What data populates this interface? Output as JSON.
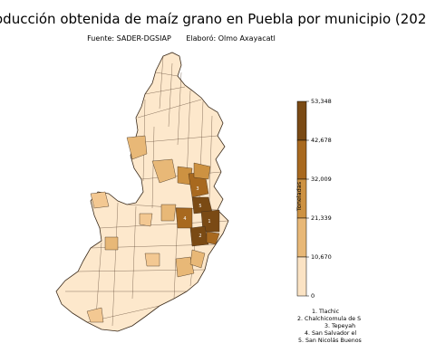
{
  "title": "oducción obtenida de maíz grano en Puebla por municipio (202",
  "subtitle": {
    "source": "Fuente: SADER-DGSIAP",
    "author": "Elaboró: Olmo Axayacatl"
  },
  "colorbar": {
    "label": "Toneladas",
    "ticks": [
      "53,348",
      "42,678",
      "32,009",
      "21,339",
      "10,670",
      "0"
    ],
    "colors": [
      "#7a4a14",
      "#a8691f",
      "#cd9242",
      "#e8b877",
      "#fbe3c4"
    ]
  },
  "notes": [
    "1. Tlachic",
    "2. Chalchicomula de S",
    "3. Tepeyah",
    "4. San Salvador el",
    "5. San Nicolás Buenos"
  ],
  "map_labels": [
    "1",
    "2",
    "3",
    "4",
    "5"
  ],
  "colors": {
    "base": "#fde8cc",
    "light": "#f3c892",
    "mid": "#dea35c",
    "dark": "#b5742b",
    "darkest": "#7e4c17",
    "stroke": "#3a2a1a"
  }
}
